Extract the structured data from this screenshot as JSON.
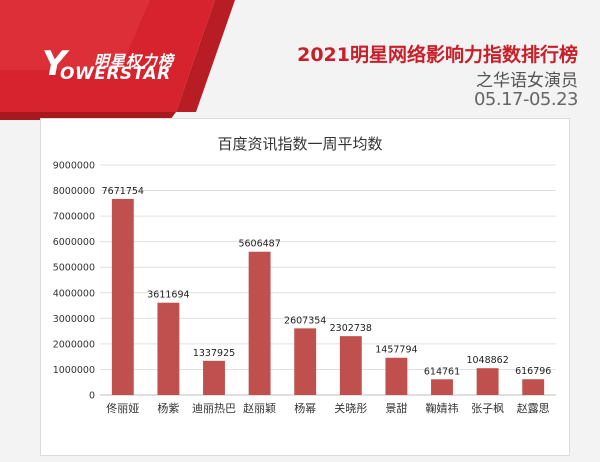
{
  "header": {
    "logo_cn": "明星权力榜",
    "logo_en": "OWERSTAR",
    "logo_initial": "Y",
    "title": "2021明星网络影响力指数排行榜",
    "subtitle": "之华语女演员",
    "date_range": "05.17-05.23"
  },
  "colors": {
    "accent": "#c8202a",
    "bar": "#c0504d",
    "banner_red": "#d7232d"
  },
  "chart_data": {
    "type": "bar",
    "title": "百度资讯指数一周平均数",
    "xlabel": "",
    "ylabel": "",
    "ylim": [
      0,
      9000000
    ],
    "yticks": [
      0,
      1000000,
      2000000,
      3000000,
      4000000,
      5000000,
      6000000,
      7000000,
      8000000,
      9000000
    ],
    "categories": [
      "佟丽娅",
      "杨紫",
      "迪丽热巴",
      "赵丽颖",
      "杨幂",
      "关晓彤",
      "景甜",
      "鞠婧祎",
      "张子枫",
      "赵露思"
    ],
    "values": [
      7671754,
      3611694,
      1337925,
      5606487,
      2607354,
      2302738,
      1457794,
      614761,
      1048862,
      616796
    ],
    "grid": true,
    "legend": "none"
  }
}
